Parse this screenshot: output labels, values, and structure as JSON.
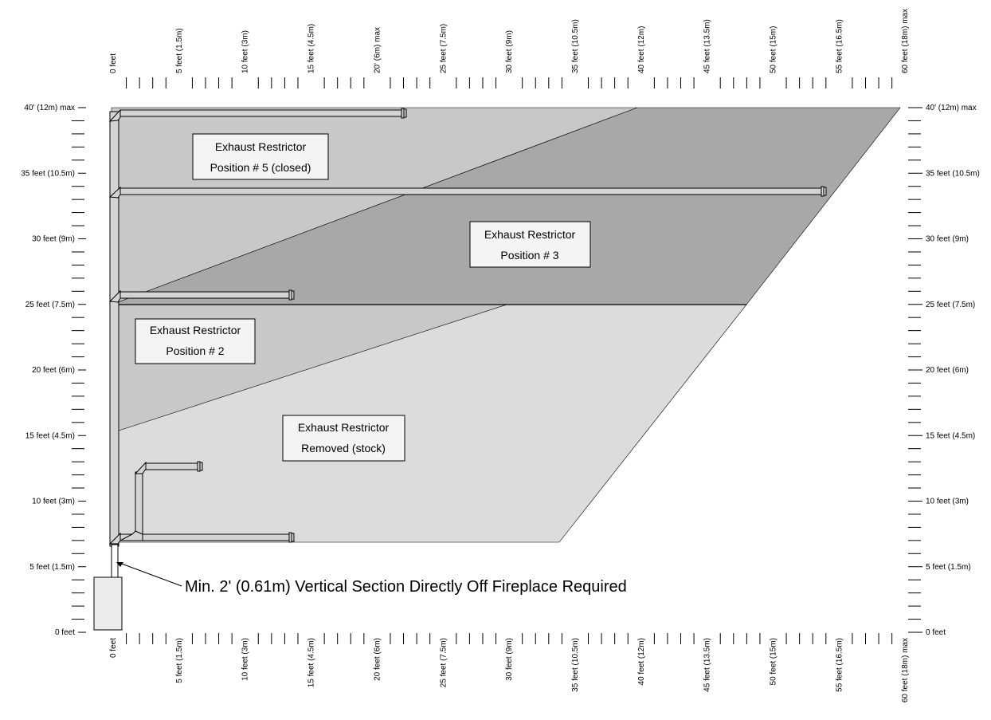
{
  "axes": {
    "top": [
      "0 feet",
      "5 feet (1.5m)",
      "10 feet (3m)",
      "15 feet (4.5m)",
      "20' (6m) max",
      "25 feet (7.5m)",
      "30 feet (9m)",
      "35 feet (10.5m)",
      "40 feet (12m)",
      "45 feet (13.5m)",
      "50 feet (15m)",
      "55 feet (16.5m)",
      "60 feet (18m) max"
    ],
    "bottom": [
      "0 feet",
      "5 feet (1.5m)",
      "10 feet (3m)",
      "15 feet (4.5m)",
      "20 feet (6m)",
      "25 feet (7.5m)",
      "30 feet (9m)",
      "35 feet (10.5m)",
      "40 feet (12m)",
      "45 feet (13.5m)",
      "50 feet (15m)",
      "55 feet (16.5m)",
      "60 feet (18m) max"
    ],
    "left": [
      "0 feet",
      "5 feet (1.5m)",
      "10 feet (3m)",
      "15 feet (4.5m)",
      "20 feet (6m)",
      "25 feet (7.5m)",
      "30 feet (9m)",
      "35 feet (10.5m)",
      "40' (12m) max"
    ],
    "right": [
      "0 feet",
      "5 feet  (1.5m)",
      "10 feet (3m)",
      "15 feet (4.5m)",
      "20 feet (6m)",
      "25 feet (7.5m)",
      "30 feet (9m)",
      "35 feet (10.5m)",
      "40' (12m) max"
    ]
  },
  "regions": {
    "position5": {
      "line1": "Exhaust Restrictor",
      "line2": "Position # 5 (closed)",
      "color": "#c8c8c8"
    },
    "position3": {
      "line1": "Exhaust Restrictor",
      "line2": "Position # 3",
      "color": "#a8a8a8"
    },
    "position2": {
      "line1": "Exhaust Restrictor",
      "line2": "Position # 2",
      "color": "#c8c8c8"
    },
    "removed": {
      "line1": "Exhaust Restrictor",
      "line2": "Removed (stock)",
      "color": "#dcdcdc"
    }
  },
  "note": "Min. 2' (0.61m) Vertical Section Directly Off Fireplace Required"
}
